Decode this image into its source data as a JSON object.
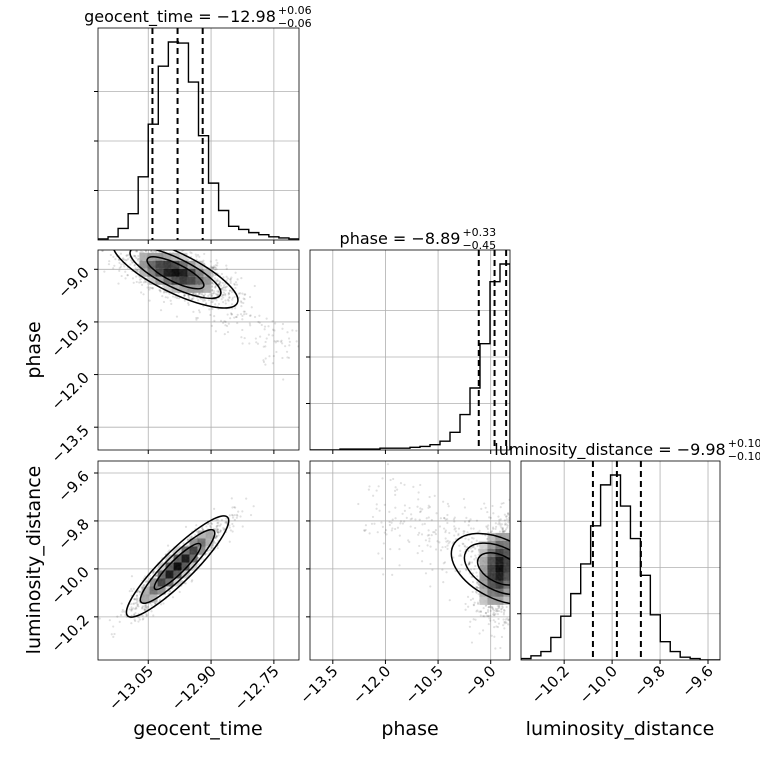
{
  "page": {
    "background": "#ffffff"
  },
  "chart_data": {
    "type": "corner",
    "parameters": [
      "geocent_time",
      "phase",
      "luminosity_distance"
    ],
    "titles": [
      {
        "param": "geocent_time",
        "prefix": "geocent_time = −12.98",
        "plus": "+0.06",
        "minus": "−0.06"
      },
      {
        "param": "phase",
        "prefix": "phase = −8.89",
        "plus": "+0.33",
        "minus": "−0.45"
      },
      {
        "param": "luminosity_distance",
        "prefix": "luminosity_distance = −9.98",
        "plus": "+0.10",
        "minus": "−0.10"
      }
    ],
    "axis_labels": {
      "x": [
        "geocent_time",
        "phase",
        "luminosity_distance"
      ],
      "y": [
        "phase",
        "luminosity_distance"
      ]
    },
    "ranges": {
      "geocent_time": [
        -13.17,
        -12.69
      ],
      "phase": [
        -14.15,
        -8.45
      ],
      "luminosity_distance": [
        -10.38,
        -9.55
      ]
    },
    "ticks": {
      "geocent_time": {
        "values": [
          -13.05,
          -12.9,
          -12.75
        ],
        "labels": [
          "−13.05",
          "−12.90",
          "−12.75"
        ]
      },
      "phase": {
        "values": [
          -13.5,
          -12.0,
          -10.5,
          -9.0
        ],
        "labels": [
          "−13.5",
          "−12.0",
          "−10.5",
          "−9.0"
        ]
      },
      "luminosity_distance": {
        "values": [
          -10.2,
          -10.0,
          -9.8,
          -9.6
        ],
        "labels": [
          "−10.2",
          "−10.0",
          "−9.8",
          "−9.6"
        ]
      }
    },
    "grid": true,
    "colors": {
      "line": "#000000",
      "grid": "#b0b0b0",
      "density_dark": "#000000",
      "density_light": "#ffffff"
    },
    "quantiles": {
      "geocent_time": [
        -13.04,
        -12.98,
        -12.92
      ],
      "phase": [
        -9.34,
        -8.89,
        -8.56
      ],
      "luminosity_distance": [
        -10.08,
        -9.98,
        -9.88
      ]
    },
    "histograms": [
      {
        "param": "geocent_time",
        "bin_edges": [
          -13.17,
          -13.146,
          -13.122,
          -13.098,
          -13.074,
          -13.05,
          -13.026,
          -13.002,
          -12.978,
          -12.954,
          -12.93,
          -12.906,
          -12.882,
          -12.858,
          -12.834,
          -12.81,
          -12.786,
          -12.762,
          -12.738,
          -12.714,
          -12.69
        ],
        "counts": [
          1,
          3,
          11,
          25,
          60,
          110,
          165,
          188,
          187,
          150,
          99,
          54,
          28,
          13,
          10,
          7,
          5,
          3,
          2,
          1
        ]
      },
      {
        "param": "phase",
        "bin_edges": [
          -14.15,
          -13.865,
          -13.58,
          -13.295,
          -13.01,
          -12.725,
          -12.44,
          -12.155,
          -11.87,
          -11.585,
          -11.3,
          -11.015,
          -10.73,
          -10.445,
          -10.16,
          -9.875,
          -9.59,
          -9.305,
          -9.02,
          -8.735,
          -8.45
        ],
        "counts": [
          0,
          0,
          0,
          1,
          1,
          1,
          1,
          2,
          2,
          2,
          3,
          4,
          6,
          10,
          20,
          40,
          70,
          120,
          190,
          210
        ]
      },
      {
        "param": "luminosity_distance",
        "bin_edges": [
          -10.38,
          -10.3385,
          -10.297,
          -10.2555,
          -10.214,
          -10.1725,
          -10.131,
          -10.0895,
          -10.048,
          -10.0065,
          -9.965,
          -9.9235,
          -9.882,
          -9.8405,
          -9.799,
          -9.7575,
          -9.716,
          -9.6745,
          -9.633,
          -9.5915,
          -9.55
        ],
        "counts": [
          1,
          3,
          6,
          16,
          31,
          47,
          68,
          95,
          124,
          131,
          109,
          86,
          60,
          32,
          13,
          6,
          2,
          1,
          0,
          0
        ]
      }
    ],
    "joint": [
      {
        "x": "geocent_time",
        "y": "phase",
        "center": [
          -12.985,
          -9.1
        ],
        "spread": [
          0.06,
          0.35
        ],
        "correlation": -0.55,
        "tail": {
          "from": [
            -12.93,
            -9.5
          ],
          "to": [
            -12.72,
            -11.4
          ]
        }
      },
      {
        "x": "geocent_time",
        "y": "luminosity_distance",
        "center": [
          -12.98,
          -9.99
        ],
        "spread": [
          0.055,
          0.095
        ],
        "correlation": 0.92
      },
      {
        "x": "phase",
        "y": "luminosity_distance",
        "center": [
          -8.75,
          -10.0
        ],
        "spread": [
          0.35,
          0.1
        ],
        "correlation": 0.2,
        "tail": {
          "from": [
            -9.6,
            -9.9
          ],
          "to": [
            -12.5,
            -9.75
          ]
        }
      }
    ]
  }
}
